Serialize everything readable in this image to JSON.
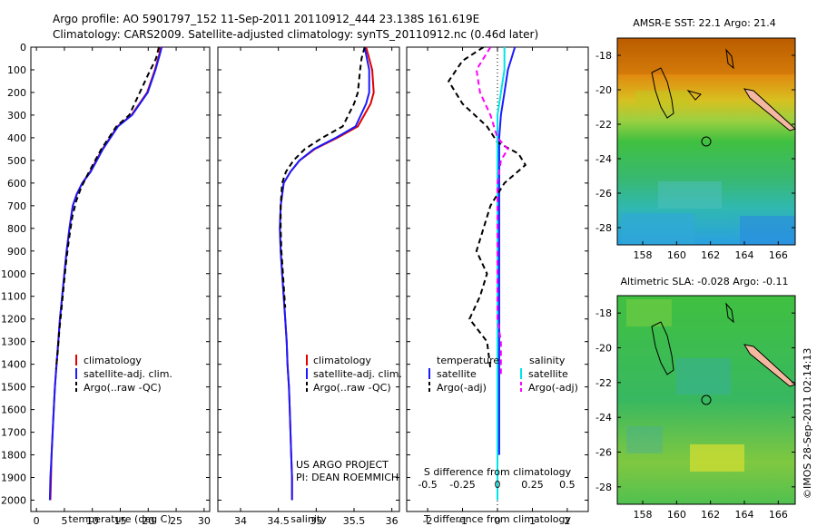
{
  "title": {
    "line1": "Argo profile: AO 5901797_152 11-Sep-2011 20110912_444 23.138S 161.619E",
    "line2": "Climatology: CARS2009. Satellite-adjusted climatology: synTS_20110912.nc (0.46d later)"
  },
  "colors": {
    "climatology": "#e00000",
    "satellite": "#1a1aff",
    "argo": "#000000",
    "sal_satellite": "#00e5e5",
    "sal_argo": "#ff00ff"
  },
  "chart_data": [
    {
      "id": "temperature",
      "type": "line",
      "xlabel": "temperature (deg C)",
      "xlim": [
        -1,
        31
      ],
      "ylim": [
        0,
        2050
      ],
      "xticks": [
        "0",
        "5",
        "10",
        "15",
        "20",
        "25",
        "30"
      ],
      "yticks": [
        "0",
        "100",
        "200",
        "300",
        "400",
        "500",
        "600",
        "700",
        "800",
        "900",
        "1000",
        "1100",
        "1200",
        "1300",
        "1400",
        "1500",
        "1600",
        "1700",
        "1800",
        "1900",
        "2000"
      ],
      "series": [
        {
          "name": "climatology",
          "style": "solid",
          "color": "#e00000",
          "x": [
            22.2,
            22.0,
            21.2,
            19.8,
            17.0,
            14.5,
            11.8,
            9.6,
            8.2,
            7.2,
            6.5,
            5.9,
            5.4,
            5.0,
            4.6,
            4.2,
            3.9,
            3.6,
            3.3,
            3.1,
            2.9,
            2.7,
            2.6,
            2.5
          ],
          "y": [
            0,
            30,
            100,
            200,
            300,
            350,
            450,
            550,
            600,
            650,
            700,
            800,
            900,
            1000,
            1100,
            1200,
            1300,
            1400,
            1500,
            1600,
            1700,
            1800,
            1900,
            2000
          ]
        },
        {
          "name": "satellite-adj. clim.",
          "style": "solid",
          "color": "#1a1aff",
          "x": [
            22.4,
            22.1,
            21.3,
            19.9,
            17.1,
            14.6,
            11.9,
            9.7,
            8.2,
            7.2,
            6.5,
            5.9,
            5.4,
            5.0,
            4.6,
            4.2,
            3.9,
            3.6,
            3.3,
            3.1,
            2.9,
            2.7,
            2.5,
            2.4
          ],
          "y": [
            0,
            30,
            100,
            200,
            300,
            350,
            450,
            550,
            600,
            650,
            700,
            800,
            900,
            1000,
            1100,
            1200,
            1300,
            1400,
            1500,
            1600,
            1700,
            1800,
            1900,
            2000
          ]
        },
        {
          "name": "Argo(..raw -QC)",
          "style": "dashed",
          "color": "#000000",
          "x": [
            21.9,
            21.4,
            20.0,
            18.5,
            16.6,
            14.3,
            11.6,
            9.2,
            8.0,
            7.1,
            6.4,
            5.8,
            5.3,
            4.9,
            4.5,
            4.1,
            3.8,
            3.5
          ],
          "y": [
            0,
            50,
            120,
            200,
            300,
            350,
            450,
            560,
            620,
            680,
            750,
            850,
            950,
            1050,
            1150,
            1250,
            1350,
            1420
          ]
        }
      ],
      "legend": {
        "position": "lower-middle",
        "entries": [
          "climatology",
          "satellite-adj. clim.",
          "Argo(..raw -QC)"
        ]
      }
    },
    {
      "id": "salinity",
      "type": "line",
      "xlabel": "salinity",
      "xlim": [
        33.7,
        36.1
      ],
      "ylim": [
        0,
        2050
      ],
      "xticks": [
        "34",
        "34.5",
        "35",
        "35.5",
        "36"
      ],
      "series": [
        {
          "name": "climatology",
          "style": "solid",
          "color": "#e00000",
          "x": [
            35.66,
            35.7,
            35.74,
            35.76,
            35.72,
            35.55,
            35.28,
            34.98,
            34.78,
            34.66,
            34.57,
            34.53,
            34.52,
            34.53,
            34.55,
            34.57,
            34.59,
            34.61,
            34.62,
            34.64,
            34.65,
            34.66,
            34.67,
            34.68,
            34.68
          ],
          "y": [
            0,
            50,
            100,
            200,
            250,
            350,
            400,
            450,
            500,
            550,
            600,
            700,
            800,
            900,
            1000,
            1100,
            1200,
            1300,
            1400,
            1500,
            1600,
            1700,
            1800,
            1900,
            2000
          ]
        },
        {
          "name": "satellite-adj. clim.",
          "style": "solid",
          "color": "#1a1aff",
          "x": [
            35.64,
            35.67,
            35.7,
            35.7,
            35.66,
            35.52,
            35.26,
            34.97,
            34.78,
            34.66,
            34.57,
            34.53,
            34.52,
            34.53,
            34.55,
            34.57,
            34.59,
            34.61,
            34.62,
            34.64,
            34.65,
            34.66,
            34.67,
            34.68,
            34.68
          ],
          "y": [
            0,
            50,
            100,
            200,
            250,
            350,
            400,
            450,
            500,
            550,
            600,
            700,
            800,
            900,
            1000,
            1100,
            1200,
            1300,
            1400,
            1500,
            1600,
            1700,
            1800,
            1900,
            2000
          ]
        },
        {
          "name": "Argo(..raw -QC)",
          "style": "dashed",
          "color": "#000000",
          "x": [
            35.64,
            35.6,
            35.58,
            35.55,
            35.5,
            35.35,
            35.08,
            34.85,
            34.7,
            34.6,
            34.55,
            34.53,
            34.53,
            34.54,
            34.56,
            34.58,
            34.59
          ],
          "y": [
            0,
            50,
            100,
            200,
            250,
            350,
            400,
            450,
            500,
            550,
            600,
            700,
            800,
            900,
            1000,
            1100,
            1150
          ]
        }
      ],
      "legend": {
        "position": "lower-middle",
        "entries": [
          "climatology",
          "satellite-adj. clim.",
          "Argo(..raw -QC)"
        ]
      }
    },
    {
      "id": "difference",
      "type": "line",
      "xlabel": "T difference from climatology",
      "xlabel_top": "S difference from climatology",
      "xlim": [
        -2.6,
        2.6
      ],
      "ylim": [
        0,
        2050
      ],
      "xticks": [
        "-2",
        "-1",
        "0",
        "1",
        "2"
      ],
      "xticks_top": [
        "-0.5",
        "-0.25",
        "0",
        "0.25",
        "0.5"
      ],
      "series": [
        {
          "name": "satellite",
          "group": "temperature",
          "style": "solid",
          "color": "#1a1aff",
          "x": [
            0.5,
            0.4,
            0.3,
            0.2,
            0.1,
            0.05,
            0.05,
            0.05,
            0.05,
            0.05,
            0.05,
            0.05,
            0.05,
            0.05,
            0.05,
            0.05,
            0.05,
            0.05,
            0.05,
            0.05
          ],
          "y": [
            0,
            50,
            100,
            200,
            300,
            400,
            500,
            600,
            700,
            800,
            900,
            1000,
            1100,
            1200,
            1300,
            1400,
            1500,
            1600,
            1700,
            1800
          ]
        },
        {
          "name": "Argo(-adj)",
          "group": "temperature",
          "style": "dashed",
          "color": "#000000",
          "x": [
            -0.4,
            -1.0,
            -1.4,
            -1.0,
            -0.3,
            0.0,
            0.6,
            0.8,
            0.2,
            -0.2,
            -0.4,
            -0.6,
            -0.3,
            -0.5,
            -0.8,
            -0.3,
            -0.2
          ],
          "y": [
            0,
            60,
            150,
            250,
            350,
            420,
            470,
            520,
            600,
            700,
            800,
            900,
            1000,
            1100,
            1200,
            1300,
            1420
          ]
        },
        {
          "name": "satellite",
          "group": "salinity",
          "style": "solid",
          "color": "#00e5e5",
          "x": [
            0.2,
            0.2,
            0.1,
            0.0,
            0.0,
            0.0,
            0.0,
            0.0,
            0.0,
            0.0,
            0.0,
            0.0,
            0.0,
            0.0,
            0.0,
            0.0,
            0.0,
            0.0,
            0.0,
            0.0,
            0.0
          ],
          "y": [
            0,
            100,
            200,
            300,
            400,
            500,
            600,
            700,
            800,
            900,
            1000,
            1100,
            1200,
            1300,
            1400,
            1500,
            1600,
            1700,
            1800,
            1900,
            2000
          ]
        },
        {
          "name": "Argo(-adj)",
          "group": "salinity",
          "style": "dashed",
          "color": "#ff00ff",
          "x": [
            -0.2,
            -0.6,
            -0.5,
            -0.2,
            0.0,
            0.3,
            0.1,
            0.0,
            0.0,
            0.0,
            0.0,
            0.0,
            0.0,
            0.1,
            0.1,
            0.1
          ],
          "y": [
            0,
            100,
            200,
            300,
            400,
            450,
            500,
            600,
            800,
            900,
            1000,
            1100,
            1200,
            1300,
            1400,
            1450
          ]
        }
      ],
      "legend": {
        "group_labels": [
          "temperature",
          "salinity"
        ],
        "entries": [
          "satellite",
          "Argo(-adj)",
          "satellite",
          "Argo(-adj)"
        ]
      }
    }
  ],
  "maps": [
    {
      "id": "sst-map",
      "title": "AMSR-E SST: 22.1  Argo: 21.4",
      "xticks": [
        "158",
        "160",
        "162",
        "164",
        "166"
      ],
      "yticks": [
        "-18",
        "-20",
        "-22",
        "-24",
        "-26",
        "-28"
      ]
    },
    {
      "id": "sla-map",
      "title": "Altimetric SLA: -0.028  Argo: -0.11",
      "xticks": [
        "158",
        "160",
        "162",
        "164",
        "166"
      ],
      "yticks": [
        "-18",
        "-20",
        "-22",
        "-24",
        "-26",
        "-28"
      ]
    }
  ],
  "annotations": {
    "project_line1": "US ARGO PROJECT",
    "project_line2": "PI: DEAN ROEMMICH",
    "watermark": "©IMOS 28-Sep-2011 02:14:13"
  }
}
